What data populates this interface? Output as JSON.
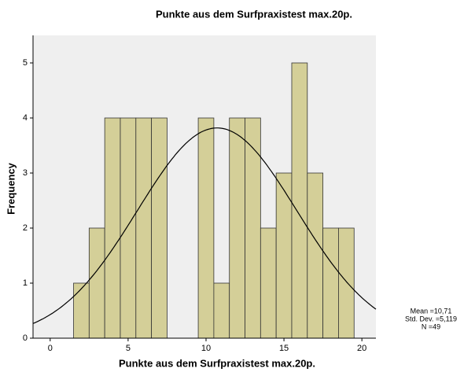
{
  "chart_data": {
    "type": "histogram",
    "title": "Punkte aus dem Surfpraxistest max.20p.",
    "x_label": "Punkte aus dem Surfpraxistest max.20p.",
    "y_label": "Frequency",
    "bins": [
      1.5,
      2.5,
      3.5,
      4.5,
      5.5,
      6.5,
      7.5,
      8.5,
      9.5,
      10.5,
      11.5,
      12.5,
      13.5,
      14.5,
      15.5,
      16.5,
      17.5,
      18.5,
      19.5
    ],
    "values": [
      1,
      2,
      4,
      4,
      4,
      4,
      0,
      0,
      4,
      1,
      4,
      4,
      2,
      3,
      5,
      3,
      2,
      2
    ],
    "color": "#d4cf98",
    "xlim": [
      -1.1,
      20.9
    ],
    "xticks": [
      0,
      5,
      10,
      15,
      20
    ],
    "ylim": [
      0,
      5.5
    ],
    "yticks": [
      0,
      1,
      2,
      3,
      4,
      5
    ],
    "stats": [
      {
        "value": 10.71,
        "label": "Mean =10,71"
      },
      {
        "value": 5.119,
        "label": "Std. Dev. =5,119"
      },
      {
        "value": 49,
        "label": "N =49"
      }
    ],
    "normal_curve": true
  }
}
